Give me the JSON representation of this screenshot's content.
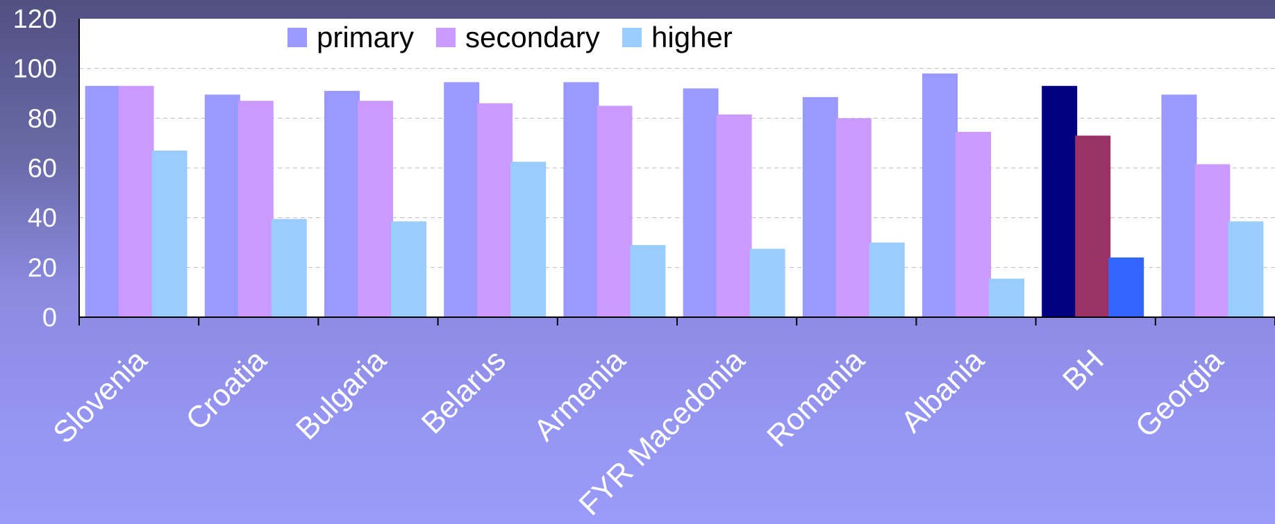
{
  "chart_data": {
    "type": "bar",
    "categories": [
      "Slovenia",
      "Croatia",
      "Bulgaria",
      "Belarus",
      "Armenia",
      "FYR Macedonia",
      "Romania",
      "Albania",
      "BH",
      "Georgia"
    ],
    "series": [
      {
        "name": "primary",
        "color": "#9999ff",
        "values": [
          93,
          89.5,
          91,
          94.5,
          94.5,
          92,
          88.5,
          98,
          93,
          89.5
        ]
      },
      {
        "name": "secondary",
        "color": "#cc99ff",
        "values": [
          93,
          87,
          87,
          86,
          85,
          81.5,
          80,
          74.5,
          73,
          61.5
        ]
      },
      {
        "name": "higher",
        "color": "#99ccff",
        "values": [
          67,
          39.5,
          38.5,
          62.5,
          29,
          27.5,
          30,
          15.5,
          24,
          38.5
        ]
      }
    ],
    "highlight": {
      "category": "BH",
      "colors": [
        "#000080",
        "#993366",
        "#3366ff"
      ]
    },
    "yticks": [
      "0",
      "20",
      "40",
      "60",
      "80",
      "100",
      "120"
    ],
    "ylim": [
      0,
      120
    ],
    "grid": true,
    "legend_position": "top",
    "title": "",
    "xlabel": "",
    "ylabel": ""
  }
}
